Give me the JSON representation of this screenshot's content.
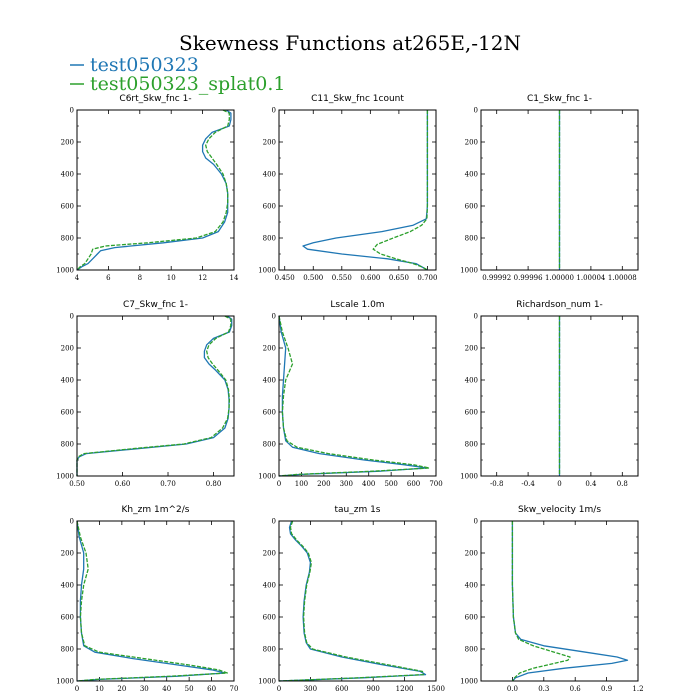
{
  "figure": {
    "title": "Skewness Functions at265E,-12N",
    "legend": [
      {
        "label": "test050323",
        "color": "#1f77b4"
      },
      {
        "label": "test050323_splat0.1",
        "color": "#2ca02c"
      }
    ]
  },
  "chart_data": [
    {
      "type": "line",
      "title": "C6rt_Skw_fnc   1-",
      "xlim": [
        4,
        14
      ],
      "ylim": [
        1000,
        0
      ],
      "xticks": [
        4,
        6,
        8,
        10,
        12,
        14
      ],
      "xtick_labels": [
        "4",
        "6",
        "8",
        "10",
        "12",
        "14"
      ],
      "yticks": [
        0,
        200,
        400,
        600,
        800,
        1000
      ],
      "series": [
        {
          "name": "test050323",
          "y": [
            0,
            20,
            60,
            100,
            140,
            180,
            220,
            260,
            300,
            340,
            400,
            460,
            520,
            580,
            640,
            700,
            760,
            800,
            830,
            860,
            880,
            900,
            930,
            960,
            980,
            1000
          ],
          "x": [
            13.5,
            13.8,
            13.8,
            13.7,
            12.6,
            12.2,
            12.0,
            12.0,
            12.2,
            12.7,
            13.2,
            13.5,
            13.6,
            13.6,
            13.6,
            13.4,
            13.0,
            12.0,
            9.5,
            6.4,
            5.5,
            5.3,
            5.0,
            4.7,
            4.3,
            4.0
          ]
        },
        {
          "name": "test050323_splat0.1",
          "y": [
            0,
            20,
            60,
            100,
            140,
            180,
            220,
            260,
            300,
            340,
            400,
            460,
            520,
            580,
            640,
            700,
            760,
            800,
            830,
            850,
            870,
            900,
            930,
            960,
            980,
            1000
          ],
          "x": [
            13.3,
            13.7,
            13.7,
            13.6,
            12.8,
            12.4,
            12.2,
            12.3,
            12.6,
            12.9,
            13.3,
            13.5,
            13.6,
            13.6,
            13.5,
            13.3,
            12.8,
            11.6,
            8.5,
            5.8,
            5.0,
            4.9,
            4.7,
            4.5,
            4.2,
            4.0
          ]
        }
      ]
    },
    {
      "type": "line",
      "title": "C11_Skw_fnc   1count",
      "xlim": [
        0.44,
        0.715
      ],
      "ylim": [
        1000,
        0
      ],
      "xticks": [
        0.45,
        0.5,
        0.55,
        0.6,
        0.65,
        0.7
      ],
      "xtick_labels": [
        "0.450",
        "0.500",
        "0.550",
        "0.600",
        "0.650",
        "0.700"
      ],
      "yticks": [
        0,
        200,
        400,
        600,
        800,
        1000
      ],
      "series": [
        {
          "name": "test050323",
          "y": [
            0,
            200,
            400,
            600,
            680,
            720,
            760,
            800,
            830,
            850,
            870,
            900,
            930,
            960,
            1000
          ],
          "x": [
            0.7,
            0.7,
            0.7,
            0.7,
            0.698,
            0.675,
            0.62,
            0.54,
            0.5,
            0.482,
            0.49,
            0.55,
            0.63,
            0.68,
            0.7
          ]
        },
        {
          "name": "test050323_splat0.1",
          "y": [
            0,
            200,
            400,
            600,
            680,
            720,
            760,
            800,
            840,
            870,
            900,
            930,
            960,
            980,
            1000
          ],
          "x": [
            0.7,
            0.7,
            0.7,
            0.7,
            0.699,
            0.69,
            0.67,
            0.64,
            0.612,
            0.605,
            0.618,
            0.645,
            0.675,
            0.69,
            0.7
          ]
        }
      ]
    },
    {
      "type": "line",
      "title": "C1_Skw_fnc   1-",
      "xlim": [
        0.9999,
        1.0001
      ],
      "ylim": [
        1000,
        0
      ],
      "xticks": [
        0.99992,
        0.99996,
        1.0,
        1.00004,
        1.00008
      ],
      "xtick_labels": [
        "0.99992",
        "0.99996",
        "1.00000",
        "1.00004",
        "1.00008"
      ],
      "yticks": [
        0,
        200,
        400,
        600,
        800,
        1000
      ],
      "series": [
        {
          "name": "test050323",
          "y": [
            0,
            1000
          ],
          "x": [
            1.0,
            1.0
          ]
        },
        {
          "name": "test050323_splat0.1",
          "y": [
            0,
            1000
          ],
          "x": [
            1.0,
            1.0
          ]
        }
      ]
    },
    {
      "type": "line",
      "title": "C7_Skw_fnc   1-",
      "xlim": [
        0.5,
        0.845
      ],
      "ylim": [
        1000,
        0
      ],
      "xticks": [
        0.5,
        0.6,
        0.7,
        0.8
      ],
      "xtick_labels": [
        "0.50",
        "0.60",
        "0.70",
        "0.80"
      ],
      "yticks": [
        0,
        200,
        400,
        600,
        800,
        1000
      ],
      "series": [
        {
          "name": "test050323",
          "y": [
            0,
            20,
            60,
            100,
            140,
            180,
            220,
            260,
            300,
            340,
            400,
            460,
            520,
            580,
            640,
            700,
            760,
            800,
            830,
            860,
            880,
            900,
            1000
          ],
          "x": [
            0.83,
            0.84,
            0.84,
            0.835,
            0.8,
            0.785,
            0.78,
            0.78,
            0.79,
            0.805,
            0.825,
            0.832,
            0.834,
            0.834,
            0.832,
            0.825,
            0.8,
            0.74,
            0.63,
            0.52,
            0.505,
            0.5,
            0.5
          ]
        },
        {
          "name": "test050323_splat0.1",
          "y": [
            0,
            20,
            60,
            100,
            140,
            180,
            220,
            260,
            300,
            340,
            400,
            460,
            520,
            580,
            640,
            700,
            760,
            800,
            830,
            860,
            880,
            900,
            1000
          ],
          "x": [
            0.825,
            0.838,
            0.838,
            0.833,
            0.805,
            0.79,
            0.785,
            0.788,
            0.798,
            0.81,
            0.827,
            0.833,
            0.835,
            0.834,
            0.831,
            0.82,
            0.795,
            0.735,
            0.62,
            0.515,
            0.503,
            0.5,
            0.5
          ]
        }
      ]
    },
    {
      "type": "line",
      "title": "Lscale   1.0m",
      "xlim": [
        0,
        700
      ],
      "ylim": [
        1000,
        0
      ],
      "xticks": [
        0,
        100,
        200,
        300,
        400,
        500,
        600,
        700
      ],
      "xtick_labels": [
        "0",
        "100",
        "200",
        "300",
        "400",
        "500",
        "600",
        "700"
      ],
      "yticks": [
        0,
        200,
        400,
        600,
        800,
        1000
      ],
      "series": [
        {
          "name": "test050323",
          "y": [
            0,
            100,
            200,
            300,
            400,
            500,
            600,
            700,
            780,
            820,
            860,
            900,
            930,
            950,
            970,
            990,
            1000
          ],
          "x": [
            0,
            10,
            30,
            25,
            20,
            15,
            15,
            20,
            30,
            60,
            180,
            380,
            560,
            660,
            450,
            100,
            0
          ]
        },
        {
          "name": "test050323_splat0.1",
          "y": [
            0,
            100,
            200,
            300,
            400,
            500,
            600,
            700,
            780,
            820,
            860,
            900,
            930,
            950,
            970,
            990,
            1000
          ],
          "x": [
            0,
            15,
            40,
            60,
            30,
            20,
            15,
            20,
            35,
            80,
            220,
            420,
            600,
            670,
            420,
            80,
            0
          ]
        }
      ]
    },
    {
      "type": "line",
      "title": "Richardson_num   1-",
      "xlim": [
        -1,
        1
      ],
      "ylim": [
        1000,
        0
      ],
      "xticks": [
        -0.8,
        -0.4,
        0,
        0.4,
        0.8
      ],
      "xtick_labels": [
        "-0.8",
        "-0.4",
        "0",
        "0.4",
        "0.8"
      ],
      "yticks": [
        0,
        200,
        400,
        600,
        800,
        1000
      ],
      "series": [
        {
          "name": "test050323",
          "y": [
            0,
            1000
          ],
          "x": [
            0,
            0
          ]
        },
        {
          "name": "test050323_splat0.1",
          "y": [
            0,
            1000
          ],
          "x": [
            0,
            0
          ]
        }
      ]
    },
    {
      "type": "line",
      "title": "Kh_zm   1m^2/s",
      "xlim": [
        0,
        70
      ],
      "ylim": [
        1000,
        0
      ],
      "xticks": [
        0,
        10,
        20,
        30,
        40,
        50,
        60,
        70
      ],
      "xtick_labels": [
        "0",
        "10",
        "20",
        "30",
        "40",
        "50",
        "60",
        "70"
      ],
      "yticks": [
        0,
        200,
        400,
        600,
        800,
        1000
      ],
      "series": [
        {
          "name": "test050323",
          "y": [
            0,
            100,
            200,
            300,
            400,
            500,
            600,
            700,
            780,
            820,
            860,
            900,
            930,
            950,
            970,
            990,
            1000
          ],
          "x": [
            0,
            1,
            3,
            3,
            2,
            1.5,
            1.5,
            2,
            3,
            8,
            25,
            45,
            60,
            66,
            45,
            10,
            0
          ]
        },
        {
          "name": "test050323_splat0.1",
          "y": [
            0,
            100,
            200,
            300,
            400,
            500,
            600,
            700,
            780,
            820,
            860,
            900,
            930,
            950,
            970,
            990,
            1000
          ],
          "x": [
            0,
            1.5,
            4,
            5,
            3,
            2,
            1.5,
            2,
            3.5,
            10,
            30,
            50,
            63,
            67,
            42,
            8,
            0
          ]
        }
      ]
    },
    {
      "type": "line",
      "title": "tau_zm   1s",
      "xlim": [
        0,
        1500
      ],
      "ylim": [
        1000,
        0
      ],
      "xticks": [
        0,
        300,
        600,
        900,
        1200,
        1500
      ],
      "xtick_labels": [
        "0",
        "300",
        "600",
        "900",
        "1200",
        "1500"
      ],
      "yticks": [
        0,
        200,
        400,
        600,
        800,
        1000
      ],
      "series": [
        {
          "name": "test050323",
          "y": [
            0,
            40,
            80,
            120,
            160,
            200,
            260,
            320,
            400,
            500,
            600,
            700,
            760,
            800,
            850,
            900,
            940,
            960,
            980,
            1000
          ],
          "x": [
            120,
            100,
            110,
            160,
            220,
            270,
            300,
            290,
            260,
            240,
            230,
            240,
            260,
            300,
            600,
            1000,
            1350,
            1400,
            800,
            0
          ]
        },
        {
          "name": "test050323_splat0.1",
          "y": [
            0,
            40,
            80,
            120,
            160,
            200,
            260,
            320,
            400,
            500,
            600,
            700,
            760,
            800,
            850,
            900,
            940,
            960,
            980,
            1000
          ],
          "x": [
            130,
            110,
            120,
            170,
            230,
            280,
            310,
            295,
            265,
            245,
            235,
            245,
            265,
            320,
            640,
            1050,
            1370,
            1380,
            760,
            0
          ]
        }
      ]
    },
    {
      "type": "line",
      "title": "Skw_velocity   1m/s",
      "xlim": [
        -0.3,
        1.2
      ],
      "ylim": [
        1000,
        0
      ],
      "xticks": [
        0,
        0.3,
        0.6,
        0.9,
        1.2
      ],
      "xtick_labels": [
        "0.0",
        "0.3",
        "0.6",
        "0.9",
        "1.2"
      ],
      "yticks": [
        0,
        200,
        400,
        600,
        800,
        1000
      ],
      "series": [
        {
          "name": "test050323",
          "y": [
            0,
            200,
            400,
            600,
            700,
            740,
            780,
            820,
            850,
            870,
            890,
            920,
            950,
            980,
            1000
          ],
          "x": [
            0,
            0,
            0,
            0.01,
            0.03,
            0.08,
            0.3,
            0.7,
            1.0,
            1.1,
            0.95,
            0.5,
            0.15,
            0.03,
            0
          ]
        },
        {
          "name": "test050323_splat0.1",
          "y": [
            0,
            200,
            400,
            600,
            700,
            740,
            780,
            820,
            850,
            870,
            890,
            920,
            950,
            980,
            1000
          ],
          "x": [
            0,
            0,
            0,
            0.01,
            0.03,
            0.06,
            0.2,
            0.4,
            0.55,
            0.53,
            0.4,
            0.2,
            0.07,
            0.02,
            0
          ]
        }
      ]
    }
  ]
}
